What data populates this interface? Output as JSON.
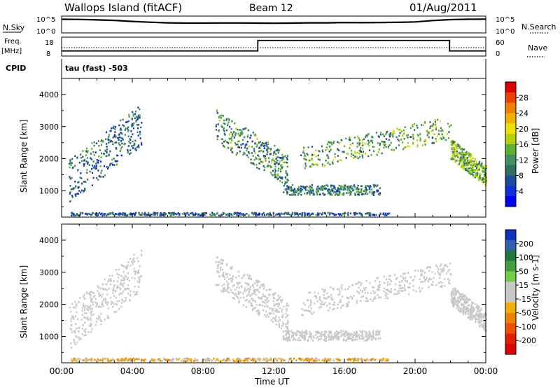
{
  "header": {
    "site": "Wallops Island (fitACF)",
    "beam": "Beam 12",
    "date": "01/Aug/2011"
  },
  "strips": {
    "nsky_label": "N.Sky",
    "nsky_ticks": [
      "10^5",
      "10^0"
    ],
    "nsearch_label": "N.Search",
    "nsearch_ticks": [
      "10^5",
      "10^0"
    ],
    "freq_label": "Freq.",
    "freq_unit": "[MHz]",
    "freq_ticks": [
      "18",
      "8"
    ],
    "nave_label": "Nave",
    "nave_ticks": [
      "60",
      "0"
    ],
    "cpid_label": "CPID",
    "cpid_value": "tau (fast) -503"
  },
  "x_axis": {
    "label": "Time UT",
    "tick_labels": [
      "00:00",
      "04:00",
      "08:00",
      "12:00",
      "16:00",
      "20:00",
      "00:00"
    ]
  },
  "panels": [
    {
      "ylabel": "Slant Range [km]",
      "yticks": [
        "4000",
        "3000",
        "2000",
        "1000"
      ],
      "colorbar_label": "Power [dB]",
      "colorbar_ticks": [
        "28",
        "24",
        "20",
        "16",
        "12",
        "8",
        "4"
      ],
      "colorbar_colors": [
        "#e00000",
        "#f04000",
        "#f08000",
        "#f0b000",
        "#f0e000",
        "#b8d000",
        "#60b030",
        "#409060",
        "#307060",
        "#204aa0",
        "#1030e0",
        "#0000ff"
      ]
    },
    {
      "ylabel": "Slant Range [km]",
      "yticks": [
        "4000",
        "3000",
        "2000",
        "1000"
      ],
      "colorbar_label": "Velocity [m s-1]",
      "colorbar_ticks": [
        "200",
        "100",
        "50",
        "15",
        "-15",
        "-50",
        "-100",
        "-200"
      ],
      "colorbar_colors": [
        "#1030c0",
        "#3060b0",
        "#207840",
        "#40a040",
        "#70d040",
        "#c8c8c8",
        "#c8c8c8",
        "#f0b000",
        "#f08000",
        "#f05000",
        "#e02000",
        "#e00000"
      ]
    }
  ],
  "chart_data": {
    "type": "heatmap",
    "title": "Wallops Island (fitACF)",
    "subtitle": "Beam 12",
    "date": "01/Aug/2011",
    "xlabel": "Time UT",
    "ylabel": "Slant Range [km]",
    "x_range_hours": [
      0,
      24
    ],
    "y_range_km": [
      180,
      4500
    ],
    "freq_mhz": {
      "segments": [
        {
          "from": 0,
          "to": 11.1,
          "value": 10.5
        },
        {
          "from": 11.1,
          "to": 21.95,
          "value": 16.5
        },
        {
          "from": 21.95,
          "to": 24,
          "value": 10.5
        }
      ]
    },
    "nave": {
      "value": 26
    },
    "nsky": {
      "values": [
        4.2,
        4.15,
        4.0,
        3.85,
        3.5,
        3.25,
        3.05,
        2.95,
        2.95,
        3.0,
        3.0,
        2.95,
        2.9,
        2.95,
        3.05,
        3.05,
        3.15,
        3.1,
        3.15,
        3.2,
        3.35,
        3.8,
        4.1,
        4.2,
        4.25
      ]
    },
    "power_db": {
      "colorbar_range": [
        0,
        32
      ],
      "regions": [
        {
          "t0": 0.4,
          "t1": 4.5,
          "r0": 700,
          "r1": 3700,
          "value": 9,
          "shape": "rising-arc"
        },
        {
          "t0": 8.7,
          "t1": 12.8,
          "r0": 1200,
          "r1": 3500,
          "value": 11,
          "shape": "falling-arc"
        },
        {
          "t0": 12.5,
          "t1": 18.0,
          "r0": 700,
          "r1": 1400,
          "value": 10,
          "shape": "band"
        },
        {
          "t0": 13.5,
          "t1": 22.0,
          "r0": 1700,
          "r1": 3300,
          "value": 13,
          "shape": "rising-band"
        },
        {
          "t0": 22.0,
          "t1": 24.0,
          "r0": 1200,
          "r1": 2600,
          "value": 14,
          "shape": "falling-band"
        },
        {
          "t0": 0.5,
          "t1": 18.5,
          "r0": 200,
          "r1": 400,
          "value": 8,
          "shape": "ground-band"
        }
      ]
    },
    "velocity_ms": {
      "colorbar_range": [
        -250,
        250
      ],
      "regions": [
        {
          "t0": 0.4,
          "t1": 4.5,
          "r0": 700,
          "r1": 3700,
          "value": 0,
          "shape": "rising-arc"
        },
        {
          "t0": 8.7,
          "t1": 12.8,
          "r0": 1200,
          "r1": 3500,
          "value": 0,
          "shape": "falling-arc"
        },
        {
          "t0": 12.5,
          "t1": 18.0,
          "r0": 700,
          "r1": 1400,
          "value": 0,
          "shape": "band"
        },
        {
          "t0": 13.5,
          "t1": 22.0,
          "r0": 1700,
          "r1": 3300,
          "value": 0,
          "shape": "rising-band"
        },
        {
          "t0": 22.0,
          "t1": 24.0,
          "r0": 1200,
          "r1": 2600,
          "value": 0,
          "shape": "falling-band"
        },
        {
          "t0": 0.5,
          "t1": 18.5,
          "r0": 200,
          "r1": 400,
          "value": -60,
          "shape": "ground-band"
        }
      ]
    }
  }
}
